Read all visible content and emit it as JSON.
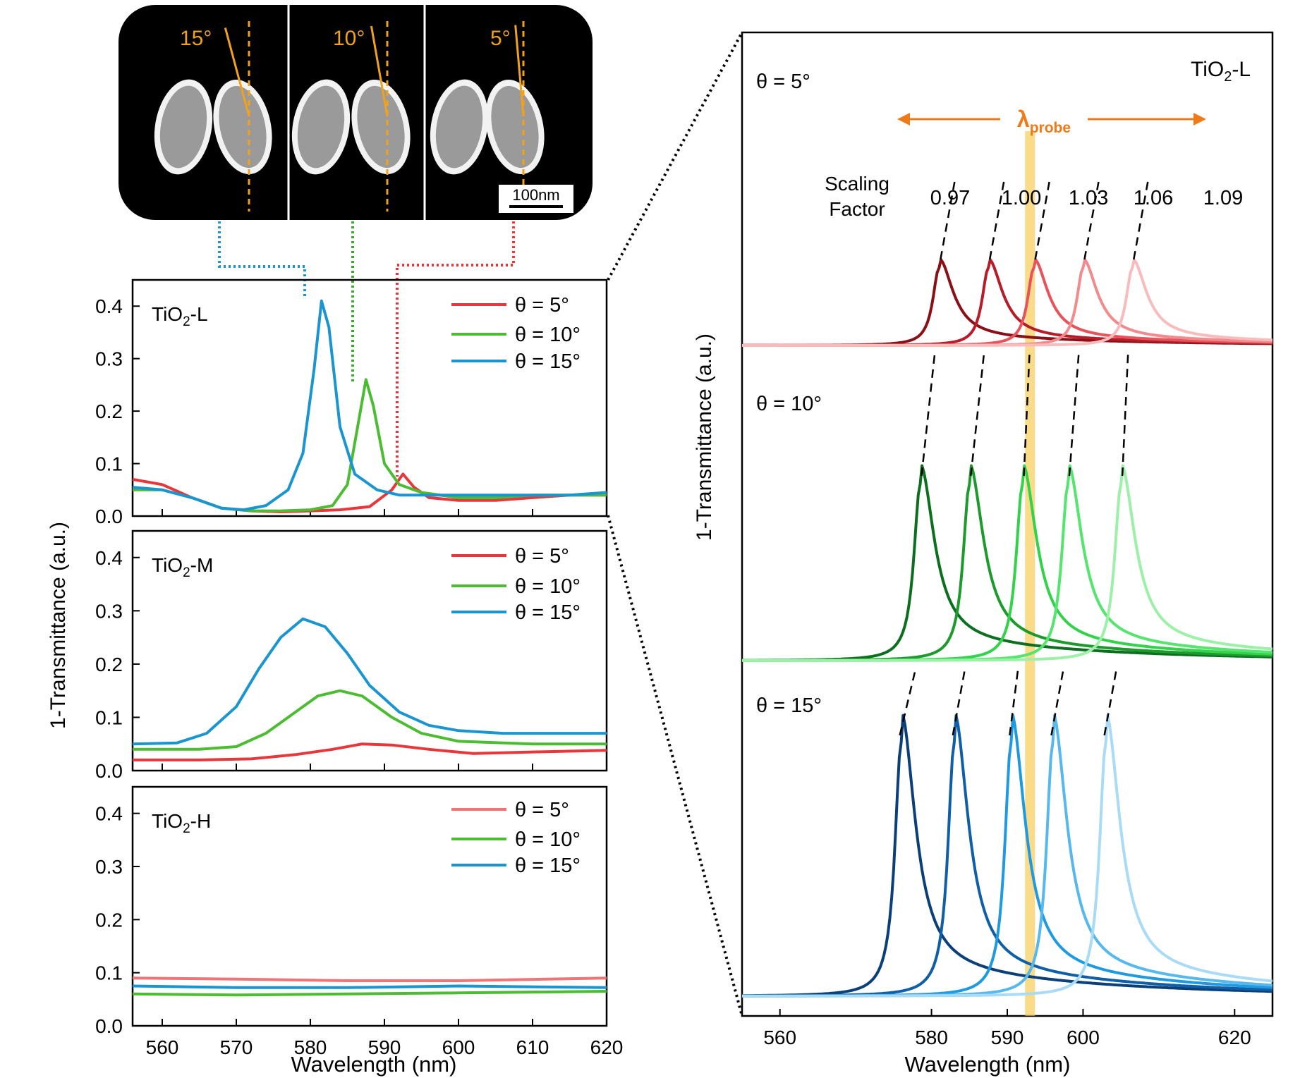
{
  "sem_image": {
    "panels": [
      {
        "angle_label": "15°",
        "tilt_deg": 15
      },
      {
        "angle_label": "10°",
        "tilt_deg": 10
      },
      {
        "angle_label": "5°",
        "tilt_deg": 5
      }
    ],
    "scale_bar_label": "100nm"
  },
  "left_ylabel": "1-Transmittance (a.u.)",
  "left_xlabel": "Wavelength (nm)",
  "right_ylabel": "1-Transmittance (a.u.)",
  "right_xlabel": "Wavelength (nm)",
  "chart_data": [
    {
      "type": "line",
      "panel": "left-top",
      "label_main": "TiO",
      "label_sub": "2",
      "label_tail": "-L",
      "xlim": [
        556,
        620
      ],
      "ylim": [
        0,
        0.45
      ],
      "xticks": [
        560,
        570,
        580,
        590,
        600,
        610,
        620
      ],
      "yticks": [
        "0.0",
        "0.1",
        "0.2",
        "0.3",
        "0.4"
      ],
      "legend": "top-right",
      "series": [
        {
          "name": "θ = 5°",
          "color": "#e8373b",
          "x": [
            556,
            560,
            564,
            568,
            572,
            576,
            580,
            584,
            588,
            591,
            592.5,
            594,
            596,
            600,
            605,
            610,
            615,
            620
          ],
          "y": [
            0.07,
            0.06,
            0.035,
            0.015,
            0.01,
            0.008,
            0.01,
            0.012,
            0.018,
            0.05,
            0.08,
            0.055,
            0.035,
            0.03,
            0.03,
            0.035,
            0.04,
            0.04
          ]
        },
        {
          "name": "θ = 10°",
          "color": "#4cbc33",
          "x": [
            556,
            560,
            564,
            568,
            572,
            576,
            580,
            583,
            585,
            586.5,
            587.5,
            588.5,
            590,
            592,
            595,
            600,
            605,
            610,
            615,
            620
          ],
          "y": [
            0.05,
            0.05,
            0.035,
            0.015,
            0.01,
            0.01,
            0.012,
            0.02,
            0.06,
            0.18,
            0.26,
            0.21,
            0.1,
            0.06,
            0.045,
            0.035,
            0.035,
            0.04,
            0.04,
            0.04
          ]
        },
        {
          "name": "θ = 15°",
          "color": "#1b95cf",
          "x": [
            556,
            560,
            564,
            568,
            571,
            574,
            577,
            579,
            580.5,
            581.5,
            582.5,
            584,
            586,
            589,
            592,
            596,
            600,
            605,
            610,
            615,
            620
          ],
          "y": [
            0.055,
            0.05,
            0.035,
            0.015,
            0.012,
            0.02,
            0.05,
            0.12,
            0.28,
            0.41,
            0.36,
            0.17,
            0.08,
            0.05,
            0.04,
            0.04,
            0.04,
            0.04,
            0.04,
            0.04,
            0.045
          ]
        }
      ]
    },
    {
      "type": "line",
      "panel": "left-middle",
      "label_main": "TiO",
      "label_sub": "2",
      "label_tail": "-M",
      "xlim": [
        556,
        620
      ],
      "ylim": [
        0,
        0.45
      ],
      "xticks": [
        560,
        570,
        580,
        590,
        600,
        610,
        620
      ],
      "yticks": [
        "0.0",
        "0.1",
        "0.2",
        "0.3",
        "0.4"
      ],
      "legend": "top-right",
      "series": [
        {
          "name": "θ = 5°",
          "color": "#e8373b",
          "x": [
            556,
            565,
            572,
            578,
            583,
            587,
            591,
            596,
            602,
            610,
            620
          ],
          "y": [
            0.02,
            0.02,
            0.022,
            0.03,
            0.04,
            0.05,
            0.048,
            0.04,
            0.032,
            0.035,
            0.038
          ]
        },
        {
          "name": "θ = 10°",
          "color": "#4cbc33",
          "x": [
            556,
            565,
            570,
            574,
            578,
            581,
            584,
            587,
            591,
            595,
            600,
            610,
            620
          ],
          "y": [
            0.04,
            0.04,
            0.045,
            0.07,
            0.11,
            0.14,
            0.15,
            0.14,
            0.1,
            0.07,
            0.055,
            0.05,
            0.05
          ]
        },
        {
          "name": "θ = 15°",
          "color": "#1b95cf",
          "x": [
            556,
            562,
            566,
            570,
            573,
            576,
            579,
            582,
            585,
            588,
            592,
            596,
            600,
            606,
            612,
            620
          ],
          "y": [
            0.05,
            0.052,
            0.07,
            0.12,
            0.19,
            0.25,
            0.285,
            0.27,
            0.22,
            0.16,
            0.11,
            0.085,
            0.075,
            0.07,
            0.07,
            0.07
          ]
        }
      ]
    },
    {
      "type": "line",
      "panel": "left-bottom",
      "label_main": "TiO",
      "label_sub": "2",
      "label_tail": "-H",
      "xlim": [
        556,
        620
      ],
      "ylim": [
        0,
        0.45
      ],
      "xticks": [
        560,
        570,
        580,
        590,
        600,
        610,
        620
      ],
      "yticks": [
        "0.0",
        "0.1",
        "0.2",
        "0.3",
        "0.4"
      ],
      "legend": "top-right",
      "series": [
        {
          "name": "θ = 5°",
          "color": "#f07375",
          "x": [
            556,
            570,
            585,
            600,
            620
          ],
          "y": [
            0.09,
            0.088,
            0.085,
            0.085,
            0.09
          ]
        },
        {
          "name": "θ = 10°",
          "color": "#4cbc33",
          "x": [
            556,
            570,
            585,
            600,
            620
          ],
          "y": [
            0.06,
            0.058,
            0.06,
            0.062,
            0.065
          ]
        },
        {
          "name": "θ = 15°",
          "color": "#1b95cf",
          "x": [
            556,
            570,
            585,
            600,
            620
          ],
          "y": [
            0.075,
            0.072,
            0.072,
            0.075,
            0.072
          ]
        }
      ]
    },
    {
      "type": "line",
      "panel": "right",
      "label_main": "TiO",
      "label_sub": "2",
      "label_tail": "-L",
      "xlim": [
        555,
        625
      ],
      "xticks": [
        560,
        580,
        590,
        600,
        620
      ],
      "probe_label_main": "λ",
      "probe_label_sub": "probe",
      "probe_wavelength": 593,
      "scaling_label_line1": "Scaling",
      "scaling_label_line2": "Factor",
      "scaling_factors": [
        "0.97",
        "1.00",
        "1.03",
        "1.06",
        "1.09"
      ],
      "groups": [
        {
          "label": "θ = 5°",
          "offset": 2.0,
          "amplitude": 0.3,
          "peaks": [
            581,
            587.5,
            593.5,
            600,
            606.5
          ],
          "colors": [
            "#8a1017",
            "#b71c28",
            "#e8525a",
            "#f28b8e",
            "#f8bcbc"
          ]
        },
        {
          "label": "θ = 10°",
          "offset": 1.0,
          "amplitude": 0.65,
          "peaks": [
            578.5,
            585,
            592,
            598,
            605
          ],
          "colors": [
            "#0c6e1f",
            "#1d9a2c",
            "#33d24b",
            "#55e56e",
            "#9cf0a8"
          ]
        },
        {
          "label": "θ = 15°",
          "offset": 0.0,
          "amplitude": 0.95,
          "peaks": [
            576,
            583,
            590.5,
            596,
            603
          ],
          "colors": [
            "#0b3f78",
            "#0f5fa8",
            "#1f9ae0",
            "#56b8ec",
            "#a9dbf6"
          ]
        }
      ]
    }
  ]
}
